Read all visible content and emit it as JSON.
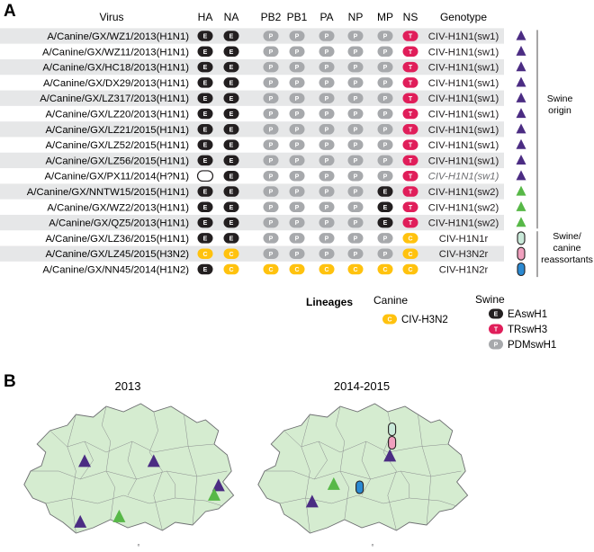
{
  "panels": [
    {
      "label": "A"
    },
    {
      "label": "B"
    }
  ],
  "columns": [
    "Virus",
    "HA",
    "NA",
    "PB2",
    "PB1",
    "PA",
    "NP",
    "MP",
    "NS",
    "Genotype"
  ],
  "rows": [
    {
      "virus": "A/Canine/GX/WZ1/2013(H1N1)",
      "segments": [
        "E",
        "E",
        "P",
        "P",
        "P",
        "P",
        "P",
        "T"
      ],
      "genotype": "CIV-H1N1(sw1)",
      "italic": false,
      "marker": "purple"
    },
    {
      "virus": "A/Canine/GX/WZ11/2013(H1N1)",
      "segments": [
        "E",
        "E",
        "P",
        "P",
        "P",
        "P",
        "P",
        "T"
      ],
      "genotype": "CIV-H1N1(sw1)",
      "italic": false,
      "marker": "purple"
    },
    {
      "virus": "A/Canine/GX/HC18/2013(H1N1)",
      "segments": [
        "E",
        "E",
        "P",
        "P",
        "P",
        "P",
        "P",
        "T"
      ],
      "genotype": "CIV-H1N1(sw1)",
      "italic": false,
      "marker": "purple"
    },
    {
      "virus": "A/Canine/GX/DX29/2013(H1N1)",
      "segments": [
        "E",
        "E",
        "P",
        "P",
        "P",
        "P",
        "P",
        "T"
      ],
      "genotype": "CIV-H1N1(sw1)",
      "italic": false,
      "marker": "purple"
    },
    {
      "virus": "A/Canine/GX/LZ317/2013(H1N1)",
      "segments": [
        "E",
        "E",
        "P",
        "P",
        "P",
        "P",
        "P",
        "T"
      ],
      "genotype": "CIV-H1N1(sw1)",
      "italic": false,
      "marker": "purple"
    },
    {
      "virus": "A/Canine/GX/LZ20/2013(H1N1)",
      "segments": [
        "E",
        "E",
        "P",
        "P",
        "P",
        "P",
        "P",
        "T"
      ],
      "genotype": "CIV-H1N1(sw1)",
      "italic": false,
      "marker": "purple"
    },
    {
      "virus": "A/Canine/GX/LZ21/2015(H1N1)",
      "segments": [
        "E",
        "E",
        "P",
        "P",
        "P",
        "P",
        "P",
        "T"
      ],
      "genotype": "CIV-H1N1(sw1)",
      "italic": false,
      "marker": "purple"
    },
    {
      "virus": "A/Canine/GX/LZ52/2015(H1N1)",
      "segments": [
        "E",
        "E",
        "P",
        "P",
        "P",
        "P",
        "P",
        "T"
      ],
      "genotype": "CIV-H1N1(sw1)",
      "italic": false,
      "marker": "purple"
    },
    {
      "virus": "A/Canine/GX/LZ56/2015(H1N1)",
      "segments": [
        "E",
        "E",
        "P",
        "P",
        "P",
        "P",
        "P",
        "T"
      ],
      "genotype": "CIV-H1N1(sw1)",
      "italic": false,
      "marker": "purple"
    },
    {
      "virus": "A/Canine/GX/PX11/2014(H?N1)",
      "segments": [
        "",
        "E",
        "P",
        "P",
        "P",
        "P",
        "P",
        "T"
      ],
      "genotype": "CIV-H1N1(sw1)",
      "italic": true,
      "marker": "purple"
    },
    {
      "virus": "A/Canine/GX/NNTW15/2015(H1N1)",
      "segments": [
        "E",
        "E",
        "P",
        "P",
        "P",
        "P",
        "E",
        "T"
      ],
      "genotype": "CIV-H1N1(sw2)",
      "italic": false,
      "marker": "green"
    },
    {
      "virus": "A/Canine/GX/WZ2/2013(H1N1)",
      "segments": [
        "E",
        "E",
        "P",
        "P",
        "P",
        "P",
        "E",
        "T"
      ],
      "genotype": "CIV-H1N1(sw2)",
      "italic": false,
      "marker": "green"
    },
    {
      "virus": "A/Canine/GX/QZ5/2013(H1N1)",
      "segments": [
        "E",
        "E",
        "P",
        "P",
        "P",
        "P",
        "E",
        "T"
      ],
      "genotype": "CIV-H1N1(sw2)",
      "italic": false,
      "marker": "green"
    },
    {
      "virus": "A/Canine/GX/LZ36/2015(H1N1)",
      "segments": [
        "E",
        "E",
        "P",
        "P",
        "P",
        "P",
        "P",
        "C"
      ],
      "genotype": "CIV-H1N1r",
      "italic": false,
      "marker": "mint"
    },
    {
      "virus": "A/Canine/GX/LZ45/2015(H3N2)",
      "segments": [
        "C",
        "C",
        "P",
        "P",
        "P",
        "P",
        "P",
        "C"
      ],
      "genotype": "CIV-H3N2r",
      "italic": false,
      "marker": "pink"
    },
    {
      "virus": "A/Canine/GX/NN45/2014(H1N2)",
      "segments": [
        "E",
        "C",
        "C",
        "C",
        "C",
        "C",
        "C",
        "C"
      ],
      "genotype": "CIV-H1N2r",
      "italic": false,
      "marker": "blue"
    }
  ],
  "groups": {
    "swine": {
      "label_lines": [
        "Swine",
        "origin"
      ]
    },
    "reassortant": {
      "label_lines": [
        "Swine/",
        "canine",
        "reassortants"
      ]
    }
  },
  "legend": {
    "title": "Lineages",
    "canine_heading": "Canine",
    "swine_heading": "Swine",
    "canine_items": [
      {
        "code": "C",
        "label": "CIV-H3N2"
      }
    ],
    "swine_items": [
      {
        "code": "E",
        "label": "EAswH1"
      },
      {
        "code": "T",
        "label": "TRswH3"
      },
      {
        "code": "P",
        "label": "PDMswH1"
      }
    ]
  },
  "maps": [
    {
      "year": "2013",
      "markers": [
        {
          "kind": "purple",
          "mx": 0.3,
          "my": 0.45
        },
        {
          "kind": "purple",
          "mx": 0.62,
          "my": 0.45
        },
        {
          "kind": "purple",
          "mx": 0.92,
          "my": 0.63
        },
        {
          "kind": "green",
          "mx": 0.9,
          "my": 0.7
        },
        {
          "kind": "green",
          "mx": 0.46,
          "my": 0.86
        },
        {
          "kind": "purple",
          "mx": 0.28,
          "my": 0.9
        }
      ]
    },
    {
      "year": "2014-2015",
      "markers": [
        {
          "kind": "mint",
          "mx": 0.64,
          "my": 0.21
        },
        {
          "kind": "pink",
          "mx": 0.64,
          "my": 0.31
        },
        {
          "kind": "purple",
          "mx": 0.63,
          "my": 0.41
        },
        {
          "kind": "green",
          "mx": 0.37,
          "my": 0.62
        },
        {
          "kind": "blue",
          "mx": 0.49,
          "my": 0.64
        },
        {
          "kind": "purple",
          "mx": 0.27,
          "my": 0.75
        }
      ]
    }
  ],
  "map_footnote": "°",
  "colors": {
    "E": "#231f20",
    "T": "#e01e5a",
    "P": "#a7a9ac",
    "C": "#ffc20e",
    "purple": "#4b2c83",
    "green": "#57b847",
    "mint": "#c9e9d9",
    "pink": "#f0a0be",
    "blue": "#2b8ad2",
    "map_fill": "#d5ecd0",
    "row_shade": "#e6e7e8"
  }
}
